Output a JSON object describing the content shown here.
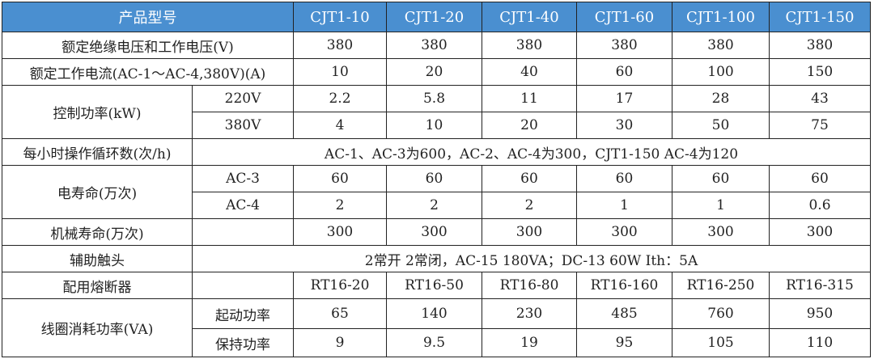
{
  "header": {
    "label": "产品型号",
    "models": [
      "CJT1-10",
      "CJT1-20",
      "CJT1-40",
      "CJT1-60",
      "CJT1-100",
      "CJT1-150"
    ]
  },
  "rows": {
    "insulation": {
      "label": "额定绝缘电压和工作电压(V)",
      "values": [
        "380",
        "380",
        "380",
        "380",
        "380",
        "380"
      ]
    },
    "current": {
      "label": "额定工作电流(AC-1～AC-4,380V)(A)",
      "values": [
        "10",
        "20",
        "40",
        "60",
        "100",
        "150"
      ]
    },
    "power": {
      "label": "控制功率(kW)",
      "sub": [
        {
          "label": "220V",
          "values": [
            "2.2",
            "5.8",
            "11",
            "17",
            "28",
            "43"
          ]
        },
        {
          "label": "380V",
          "values": [
            "4",
            "10",
            "20",
            "30",
            "50",
            "75"
          ]
        }
      ]
    },
    "cycles": {
      "label": "每小时操作循环数(次/h)",
      "value": "AC-1、AC-3为600，AC-2、AC-4为300，CJT1-150  AC-4为120"
    },
    "elife": {
      "label": "电寿命(万次)",
      "sub": [
        {
          "label": "AC-3",
          "values": [
            "60",
            "60",
            "60",
            "60",
            "60",
            "60"
          ]
        },
        {
          "label": "AC-4",
          "values": [
            "2",
            "2",
            "2",
            "1",
            "1",
            "0.6"
          ]
        }
      ]
    },
    "mlife": {
      "label": "机械寿命(万次)",
      "values": [
        "300",
        "300",
        "300",
        "300",
        "300",
        "300"
      ]
    },
    "aux": {
      "label": "辅助触头",
      "value": "2常开  2常闭，AC-15   180VA；DC-13  60W  Ith：5A"
    },
    "fuse": {
      "label": "配用熔断器",
      "values": [
        "RT16-20",
        "RT16-50",
        "RT16-80",
        "RT16-160",
        "RT16-250",
        "RT16-315"
      ]
    },
    "coil": {
      "label": "线圈消耗功率(VA)",
      "sub": [
        {
          "label": "起动功率",
          "values": [
            "65",
            "140",
            "230",
            "485",
            "760",
            "950"
          ]
        },
        {
          "label": "保持功率",
          "values": [
            "9",
            "9.5",
            "19",
            "95",
            "105",
            "110"
          ]
        }
      ]
    }
  }
}
